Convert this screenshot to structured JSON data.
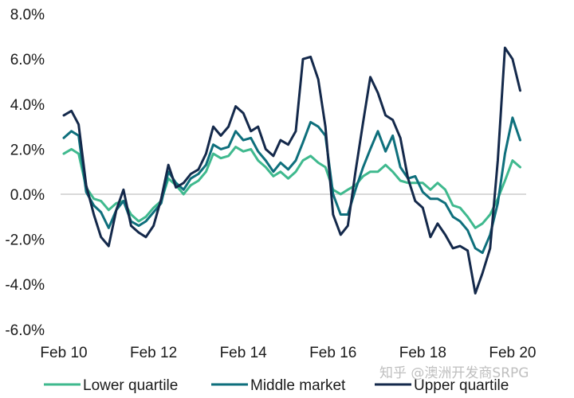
{
  "chart_data": {
    "type": "line",
    "title": "",
    "xlabel": "",
    "ylabel": "",
    "x_ticks": [
      "Feb 10",
      "Feb 12",
      "Feb 14",
      "Feb 16",
      "Feb 18",
      "Feb 20"
    ],
    "x_range": [
      2010.0,
      2020.25
    ],
    "y_ticks": [
      "-6.0%",
      "-4.0%",
      "-2.0%",
      "0.0%",
      "2.0%",
      "4.0%",
      "6.0%",
      "8.0%"
    ],
    "ylim": [
      -6.0,
      8.0
    ],
    "grid": false,
    "zero_line": true,
    "zero_line_color": "#d9d9d9",
    "legend_position": "bottom",
    "series": [
      {
        "name": "Lower quartile",
        "color": "#3fb98e",
        "x": [
          2010.0,
          2010.17,
          2010.33,
          2010.5,
          2010.67,
          2010.83,
          2011.0,
          2011.17,
          2011.33,
          2011.5,
          2011.67,
          2011.83,
          2012.0,
          2012.17,
          2012.33,
          2012.5,
          2012.67,
          2012.83,
          2013.0,
          2013.17,
          2013.33,
          2013.5,
          2013.67,
          2013.83,
          2014.0,
          2014.17,
          2014.33,
          2014.5,
          2014.67,
          2014.83,
          2015.0,
          2015.17,
          2015.33,
          2015.5,
          2015.67,
          2015.83,
          2016.0,
          2016.17,
          2016.33,
          2016.5,
          2016.67,
          2016.83,
          2017.0,
          2017.17,
          2017.33,
          2017.5,
          2017.67,
          2017.83,
          2018.0,
          2018.17,
          2018.33,
          2018.5,
          2018.67,
          2018.83,
          2019.0,
          2019.17,
          2019.33,
          2019.5,
          2019.67,
          2019.83,
          2020.0,
          2020.17
        ],
        "y": [
          1.8,
          2.0,
          1.8,
          0.3,
          -0.2,
          -0.3,
          -0.7,
          -0.4,
          -0.3,
          -0.9,
          -1.2,
          -1.0,
          -0.6,
          -0.3,
          0.7,
          0.4,
          0.0,
          0.4,
          0.6,
          1.0,
          1.8,
          1.6,
          1.7,
          2.1,
          1.9,
          2.0,
          1.5,
          1.2,
          0.8,
          1.0,
          0.7,
          1.0,
          1.5,
          1.7,
          1.4,
          1.2,
          0.2,
          0.0,
          0.2,
          0.4,
          0.8,
          1.0,
          1.0,
          1.3,
          1.0,
          0.6,
          0.5,
          0.5,
          0.5,
          0.2,
          0.5,
          0.2,
          -0.5,
          -0.6,
          -1.0,
          -1.5,
          -1.3,
          -0.9,
          -0.2,
          0.6,
          1.5,
          1.2
        ]
      },
      {
        "name": "Middle market",
        "color": "#0e6f7c",
        "x": [
          2010.0,
          2010.17,
          2010.33,
          2010.5,
          2010.67,
          2010.83,
          2011.0,
          2011.17,
          2011.33,
          2011.5,
          2011.67,
          2011.83,
          2012.0,
          2012.17,
          2012.33,
          2012.5,
          2012.67,
          2012.83,
          2013.0,
          2013.17,
          2013.33,
          2013.5,
          2013.67,
          2013.83,
          2014.0,
          2014.17,
          2014.33,
          2014.5,
          2014.67,
          2014.83,
          2015.0,
          2015.17,
          2015.33,
          2015.5,
          2015.67,
          2015.83,
          2016.0,
          2016.17,
          2016.33,
          2016.5,
          2016.67,
          2016.83,
          2017.0,
          2017.17,
          2017.33,
          2017.5,
          2017.67,
          2017.83,
          2018.0,
          2018.17,
          2018.33,
          2018.5,
          2018.67,
          2018.83,
          2019.0,
          2019.17,
          2019.33,
          2019.5,
          2019.67,
          2019.83,
          2020.0,
          2020.17
        ],
        "y": [
          2.5,
          2.8,
          2.6,
          0.1,
          -0.5,
          -0.8,
          -1.5,
          -0.7,
          -0.3,
          -1.2,
          -1.4,
          -1.2,
          -0.8,
          -0.4,
          1.0,
          0.5,
          0.2,
          0.7,
          0.9,
          1.3,
          2.2,
          2.0,
          2.1,
          2.8,
          2.4,
          2.5,
          1.9,
          1.5,
          1.0,
          1.4,
          1.1,
          1.5,
          2.3,
          3.2,
          3.0,
          2.6,
          0.0,
          -0.9,
          -0.9,
          0.2,
          1.2,
          2.0,
          2.8,
          1.9,
          2.6,
          1.2,
          0.7,
          0.8,
          0.1,
          -0.2,
          -0.2,
          -0.4,
          -1.0,
          -1.2,
          -1.6,
          -2.4,
          -2.6,
          -1.8,
          -0.4,
          1.8,
          3.4,
          2.4
        ]
      },
      {
        "name": "Upper quartile",
        "color": "#14294b",
        "x": [
          2010.0,
          2010.17,
          2010.33,
          2010.5,
          2010.67,
          2010.83,
          2011.0,
          2011.17,
          2011.33,
          2011.5,
          2011.67,
          2011.83,
          2012.0,
          2012.17,
          2012.33,
          2012.5,
          2012.67,
          2012.83,
          2013.0,
          2013.17,
          2013.33,
          2013.5,
          2013.67,
          2013.83,
          2014.0,
          2014.17,
          2014.33,
          2014.5,
          2014.67,
          2014.83,
          2015.0,
          2015.17,
          2015.33,
          2015.5,
          2015.67,
          2015.83,
          2016.0,
          2016.17,
          2016.33,
          2016.5,
          2016.67,
          2016.83,
          2017.0,
          2017.17,
          2017.33,
          2017.5,
          2017.67,
          2017.83,
          2018.0,
          2018.17,
          2018.33,
          2018.5,
          2018.67,
          2018.83,
          2019.0,
          2019.17,
          2019.33,
          2019.5,
          2019.67,
          2019.83,
          2020.0,
          2020.17
        ],
        "y": [
          3.5,
          3.7,
          3.1,
          0.4,
          -0.9,
          -1.9,
          -2.3,
          -0.7,
          0.2,
          -1.4,
          -1.7,
          -1.9,
          -1.4,
          -0.2,
          1.3,
          0.3,
          0.5,
          0.9,
          1.1,
          1.8,
          3.0,
          2.6,
          3.0,
          3.9,
          3.6,
          2.8,
          3.0,
          2.0,
          1.7,
          2.4,
          2.2,
          2.8,
          6.0,
          6.1,
          5.1,
          3.0,
          -0.9,
          -1.8,
          -1.4,
          1.0,
          3.2,
          5.2,
          4.5,
          3.5,
          3.3,
          2.5,
          0.7,
          -0.3,
          -0.6,
          -1.9,
          -1.3,
          -1.8,
          -2.4,
          -2.3,
          -2.5,
          -4.4,
          -3.5,
          -2.4,
          1.5,
          6.5,
          6.0,
          4.6
        ]
      }
    ],
    "watermark": "知乎 @澳洲开发商SRPG"
  }
}
